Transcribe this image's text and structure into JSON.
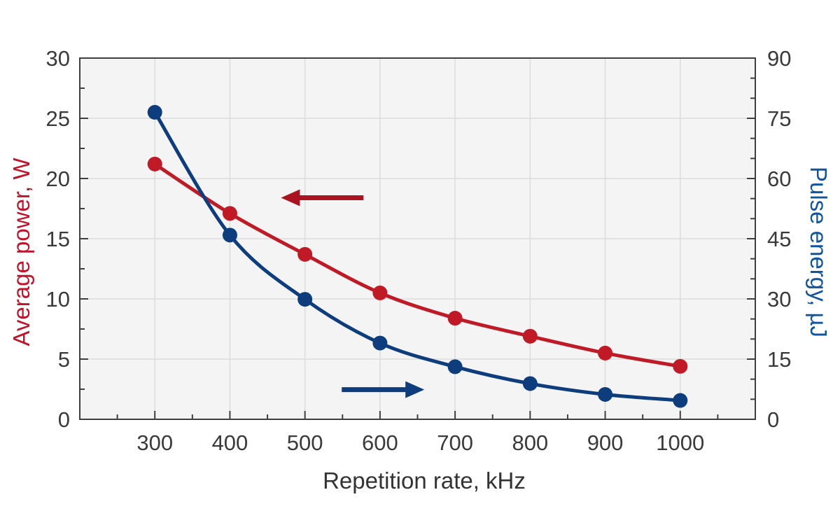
{
  "chart_data": {
    "type": "line",
    "title": "",
    "x": {
      "label": "Repetition rate, kHz",
      "lim": [
        200,
        1100
      ],
      "major_ticks": [
        300,
        400,
        500,
        600,
        700,
        800,
        900,
        1000
      ],
      "minor_step": 50
    },
    "y_left": {
      "label": "Average power, W",
      "color": "#c2132b",
      "lim": [
        0,
        30
      ],
      "major_ticks": [
        0,
        5,
        10,
        15,
        20,
        25,
        30
      ],
      "minor_step": 2.5
    },
    "y_right": {
      "label": "Pulse energy, µJ",
      "color": "#11549f",
      "lim": [
        0,
        90
      ],
      "major_ticks": [
        0,
        15,
        30,
        45,
        60,
        75,
        90
      ],
      "minor_step": 5
    },
    "categories_x_kHz": [
      300,
      400,
      500,
      600,
      700,
      800,
      900,
      1000
    ],
    "series": [
      {
        "name": "Average power",
        "unit": "W",
        "axis": "left",
        "color": "#c01a26",
        "values": [
          21.2,
          17.1,
          13.7,
          10.5,
          8.4,
          6.9,
          5.5,
          4.4
        ]
      },
      {
        "name": "Pulse energy",
        "unit": "µJ",
        "axis": "right",
        "color": "#0e3d7d",
        "values": [
          76.5,
          45.9,
          29.9,
          19.0,
          13.1,
          8.9,
          6.2,
          4.7
        ]
      }
    ],
    "annotations": {
      "arrows": [
        {
          "name": "points-to-left-axis-arrow",
          "series_ref": "Average power",
          "direction": "left",
          "color": "#ab1320",
          "x_from_kHz": 578,
          "x_to_kHz": 468,
          "y_left_W": 18.4
        },
        {
          "name": "points-to-right-axis-arrow",
          "series_ref": "Pulse energy",
          "direction": "right",
          "color": "#0e3d7d",
          "x_from_kHz": 549,
          "x_to_kHz": 659,
          "y_right_uJ": 7.4
        }
      ]
    },
    "grid": true,
    "legend_position": "none",
    "colors": {
      "plot_bg": "#f4f4f4",
      "grid": "#dcdcdc",
      "spine": "#3f3f3f",
      "tick_label": "#3a3a3a"
    }
  }
}
